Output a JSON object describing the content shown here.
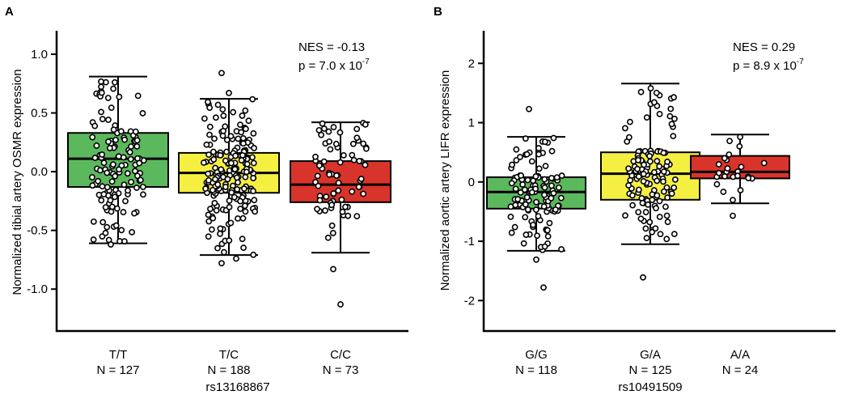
{
  "chart_data": [
    {
      "type": "box",
      "panel_label": "A",
      "ylabel": "Normalized tibial artery OSMR expression",
      "xlabel": "rs13168867",
      "ylim": [
        -1.35,
        1.2
      ],
      "yticks": [
        1.0,
        0.5,
        0.0,
        -0.5,
        -1.0
      ],
      "ytick_labels": [
        "1.0",
        "0.5",
        "0.0",
        "-0.5",
        "-1.0"
      ],
      "annotation": {
        "nes": "NES = -0.13",
        "p_prefix": "p = 7.0 x 10",
        "p_exp": "-7"
      },
      "groups": [
        {
          "genotype": "T/T",
          "n_label": "N = 127",
          "color": "#5cb85c",
          "whisker_low": -0.61,
          "q1": -0.13,
          "median": 0.11,
          "q3": 0.33,
          "whisker_high": 0.81,
          "outliers": [
            -0.62
          ]
        },
        {
          "genotype": "T/C",
          "n_label": "N = 188",
          "color": "#f5ef42",
          "whisker_low": -0.71,
          "q1": -0.18,
          "median": -0.01,
          "q3": 0.16,
          "whisker_high": 0.62,
          "outliers": [
            0.84,
            0.67,
            -0.74,
            -0.78
          ]
        },
        {
          "genotype": "C/C",
          "n_label": "N = 73",
          "color": "#d9342b",
          "whisker_low": -0.69,
          "q1": -0.26,
          "median": -0.11,
          "q3": 0.09,
          "whisker_high": 0.42,
          "outliers": [
            -0.83,
            -1.13
          ]
        }
      ]
    },
    {
      "type": "box",
      "panel_label": "B",
      "ylabel": "Normalized aortic artery LIFR expression",
      "xlabel": "rs10491509",
      "ylim": [
        -2.5,
        2.55
      ],
      "yticks": [
        2,
        1,
        0,
        -1,
        -2
      ],
      "ytick_labels": [
        "2",
        "1",
        "0",
        "-1",
        "-2"
      ],
      "annotation": {
        "nes": "NES = 0.29",
        "p_prefix": "p = 8.9 x 10",
        "p_exp": "-7"
      },
      "groups": [
        {
          "genotype": "G/G",
          "n_label": "N = 118",
          "color": "#5cb85c",
          "whisker_low": -1.16,
          "q1": -0.45,
          "median": -0.17,
          "q3": 0.08,
          "whisker_high": 0.76,
          "outliers": [
            1.23,
            -1.31,
            -1.78
          ]
        },
        {
          "genotype": "G/A",
          "n_label": "N = 125",
          "color": "#f5ef42",
          "whisker_low": -1.05,
          "q1": -0.3,
          "median": 0.14,
          "q3": 0.5,
          "whisker_high": 1.66,
          "outliers": [
            -1.61
          ]
        },
        {
          "genotype": "A/A",
          "n_label": "N = 24",
          "color": "#d9342b",
          "whisker_low": -0.36,
          "q1": 0.06,
          "median": 0.17,
          "q3": 0.44,
          "whisker_high": 0.8,
          "outliers": [
            -0.57
          ]
        }
      ]
    }
  ]
}
